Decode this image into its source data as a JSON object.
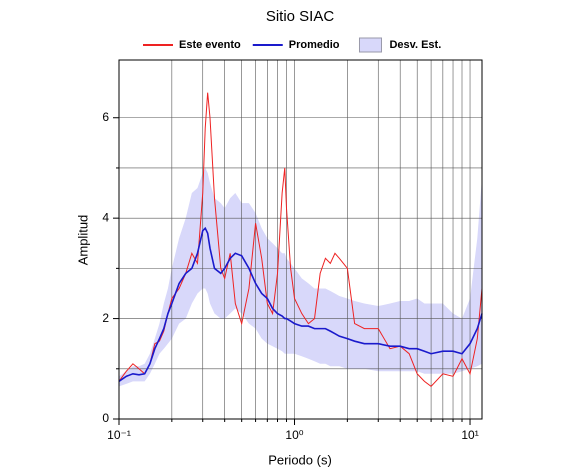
{
  "chart_data": {
    "type": "line",
    "title": "Sitio SIAC",
    "x_label": "Periodo (s)",
    "y_label": "Amplitud",
    "x_scale": "log",
    "grid": true,
    "legend": "top",
    "x": [
      0.1,
      0.11,
      0.12,
      0.13,
      0.14,
      0.15,
      0.16,
      0.17,
      0.18,
      0.19,
      0.2,
      0.22,
      0.24,
      0.26,
      0.28,
      0.3,
      0.31,
      0.32,
      0.33,
      0.35,
      0.38,
      0.4,
      0.43,
      0.46,
      0.5,
      0.55,
      0.6,
      0.65,
      0.7,
      0.75,
      0.8,
      0.85,
      0.88,
      0.9,
      0.95,
      1.0,
      1.1,
      1.2,
      1.3,
      1.4,
      1.5,
      1.6,
      1.7,
      1.8,
      2.0,
      2.2,
      2.5,
      3,
      3.5,
      4,
      4.5,
      5,
      5.5,
      6,
      7,
      8,
      9,
      10,
      11,
      11.7
    ],
    "band": {
      "name": "Desv. Est.",
      "color": "#d8d8fa",
      "upper": [
        0.85,
        0.95,
        1.05,
        1.05,
        1.1,
        1.3,
        1.6,
        1.9,
        2.3,
        2.6,
        3.0,
        3.6,
        4.0,
        4.5,
        4.6,
        4.9,
        5.0,
        4.9,
        4.7,
        4.4,
        4.3,
        4.2,
        4.4,
        4.5,
        4.3,
        4.3,
        4.1,
        3.8,
        3.6,
        3.5,
        3.4,
        3.3,
        3.3,
        3.2,
        3.1,
        3.0,
        2.8,
        2.7,
        2.6,
        2.6,
        2.6,
        2.55,
        2.5,
        2.45,
        2.4,
        2.35,
        2.3,
        2.25,
        2.3,
        2.35,
        2.35,
        2.4,
        2.3,
        2.3,
        2.3,
        2.1,
        2.0,
        2.4,
        3.6,
        4.8
      ],
      "lower": [
        0.65,
        0.7,
        0.75,
        0.75,
        0.75,
        0.9,
        1.1,
        1.3,
        1.4,
        1.5,
        1.6,
        1.9,
        2.0,
        2.3,
        2.5,
        2.6,
        2.6,
        2.5,
        2.3,
        2.1,
        2.0,
        2.0,
        2.1,
        2.2,
        2.1,
        1.9,
        1.8,
        1.6,
        1.5,
        1.45,
        1.4,
        1.35,
        1.3,
        1.3,
        1.3,
        1.3,
        1.25,
        1.2,
        1.15,
        1.1,
        1.1,
        1.05,
        1.05,
        1.05,
        1.0,
        1.0,
        1.0,
        0.95,
        0.95,
        0.95,
        0.95,
        0.95,
        0.9,
        0.9,
        0.9,
        0.9,
        0.95,
        1.0,
        1.05,
        1.1
      ]
    },
    "series": [
      {
        "name": "Este evento",
        "color": "#ee2222",
        "values": [
          0.75,
          0.95,
          1.1,
          1.0,
          0.9,
          1.1,
          1.5,
          1.55,
          1.75,
          2.1,
          2.4,
          2.6,
          2.9,
          3.3,
          3.1,
          4.5,
          5.8,
          6.5,
          6.0,
          4.4,
          3.0,
          2.8,
          3.3,
          2.3,
          1.9,
          2.6,
          3.9,
          3.2,
          2.3,
          2.1,
          2.9,
          4.5,
          5.0,
          4.2,
          3.0,
          2.4,
          2.1,
          1.9,
          2.0,
          2.9,
          3.2,
          3.1,
          3.3,
          3.2,
          3.0,
          1.9,
          1.8,
          1.8,
          1.4,
          1.45,
          1.3,
          0.9,
          0.75,
          0.65,
          0.9,
          0.85,
          1.2,
          0.9,
          1.6,
          2.6
        ]
      },
      {
        "name": "Promedio",
        "color": "#1a1acc",
        "values": [
          0.75,
          0.85,
          0.9,
          0.88,
          0.9,
          1.1,
          1.4,
          1.6,
          1.8,
          2.1,
          2.3,
          2.7,
          2.9,
          3.0,
          3.3,
          3.75,
          3.8,
          3.7,
          3.4,
          3.0,
          2.9,
          3.0,
          3.2,
          3.3,
          3.25,
          3.0,
          2.7,
          2.5,
          2.4,
          2.2,
          2.1,
          2.05,
          2.0,
          2.0,
          1.95,
          1.9,
          1.85,
          1.85,
          1.8,
          1.8,
          1.8,
          1.75,
          1.7,
          1.65,
          1.6,
          1.55,
          1.5,
          1.5,
          1.45,
          1.45,
          1.4,
          1.4,
          1.35,
          1.3,
          1.35,
          1.35,
          1.3,
          1.5,
          1.8,
          2.1
        ]
      }
    ],
    "xlim": [
      0.1,
      11.7
    ],
    "xticks": [
      {
        "value": 0.1,
        "label": "10⁻¹"
      },
      {
        "value": 1,
        "label": "10⁰"
      },
      {
        "value": 10,
        "label": "10¹"
      }
    ],
    "x_minor_ticks": [
      0.2,
      0.3,
      0.4,
      0.5,
      0.6,
      0.7,
      0.8,
      0.9,
      2,
      3,
      4,
      5,
      6,
      7,
      8,
      9
    ],
    "ylim": [
      0,
      7.15
    ],
    "yticks": [
      0,
      2,
      4,
      6
    ],
    "y_minor_ticks": [
      1,
      3,
      5
    ]
  }
}
